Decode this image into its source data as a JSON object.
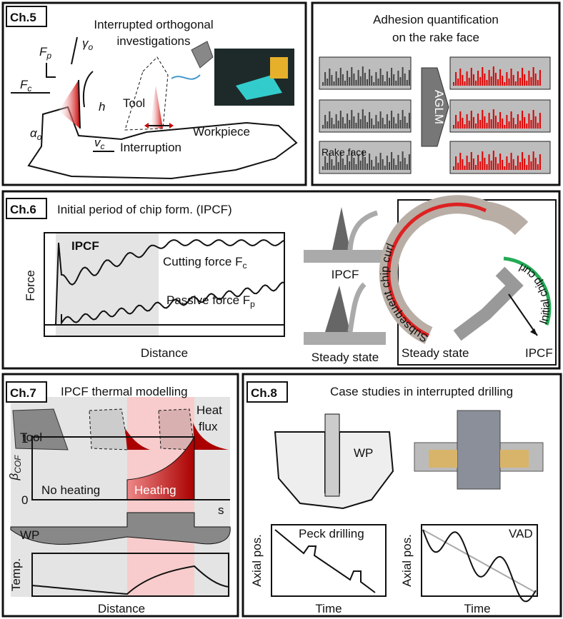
{
  "ch5": {
    "badge": "Ch.5",
    "title": [
      "Interrupted orthogonal",
      "investigations"
    ],
    "labels": {
      "fp": {
        "main": "F",
        "sub": "p"
      },
      "gamma": {
        "main": "γ",
        "sub": "o"
      },
      "fc": {
        "main": "F",
        "sub": "c"
      },
      "h": "h",
      "tool": "Tool",
      "alpha": {
        "main": "α",
        "sub": "o"
      },
      "vc": {
        "main": "v",
        "sub": "c"
      },
      "workpiece": "Workpiece",
      "interruption": "Interruption"
    }
  },
  "adhesion": {
    "title": [
      "Adhesion quantification",
      "on the rake face"
    ],
    "arrow": "AGLM",
    "rake_face": "Rake face"
  },
  "ch6": {
    "badge": "Ch.6",
    "title": "Initial period of chip form. (IPCF)",
    "ipcf": "IPCF",
    "cutting": {
      "main": "Cutting force F",
      "sub": "c"
    },
    "passive": {
      "main": "Passive force F",
      "sub": "p"
    },
    "y_label": "Force",
    "x_label": "Distance",
    "icon_ipcf": "IPCF",
    "icon_steady": "Steady state",
    "subsequent": "Subsequent chip curl",
    "initial": "Initial chip curl",
    "curl_steady": "Steady state",
    "curl_ipcf": "IPCF"
  },
  "ch7": {
    "badge": "Ch.7",
    "title": "IPCF thermal modelling",
    "tool": "Tool",
    "heat_flux": [
      "Heat",
      "flux"
    ],
    "one": "1",
    "beta": {
      "main": "β",
      "sub": "COF"
    },
    "zero": "0",
    "no_heating": "No heating",
    "heating": "Heating",
    "s": "s",
    "wp": "WP",
    "temp": "Temp.",
    "x_label": "Distance"
  },
  "ch8": {
    "badge": "Ch.8",
    "title": "Case studies in interrupted drilling",
    "wp": "WP",
    "left": {
      "y_label": "Axial pos.",
      "name": "Peck drilling",
      "x_label": "Time"
    },
    "right": {
      "y_label": "Axial pos.",
      "name": "VAD",
      "x_label": "Time"
    }
  }
}
